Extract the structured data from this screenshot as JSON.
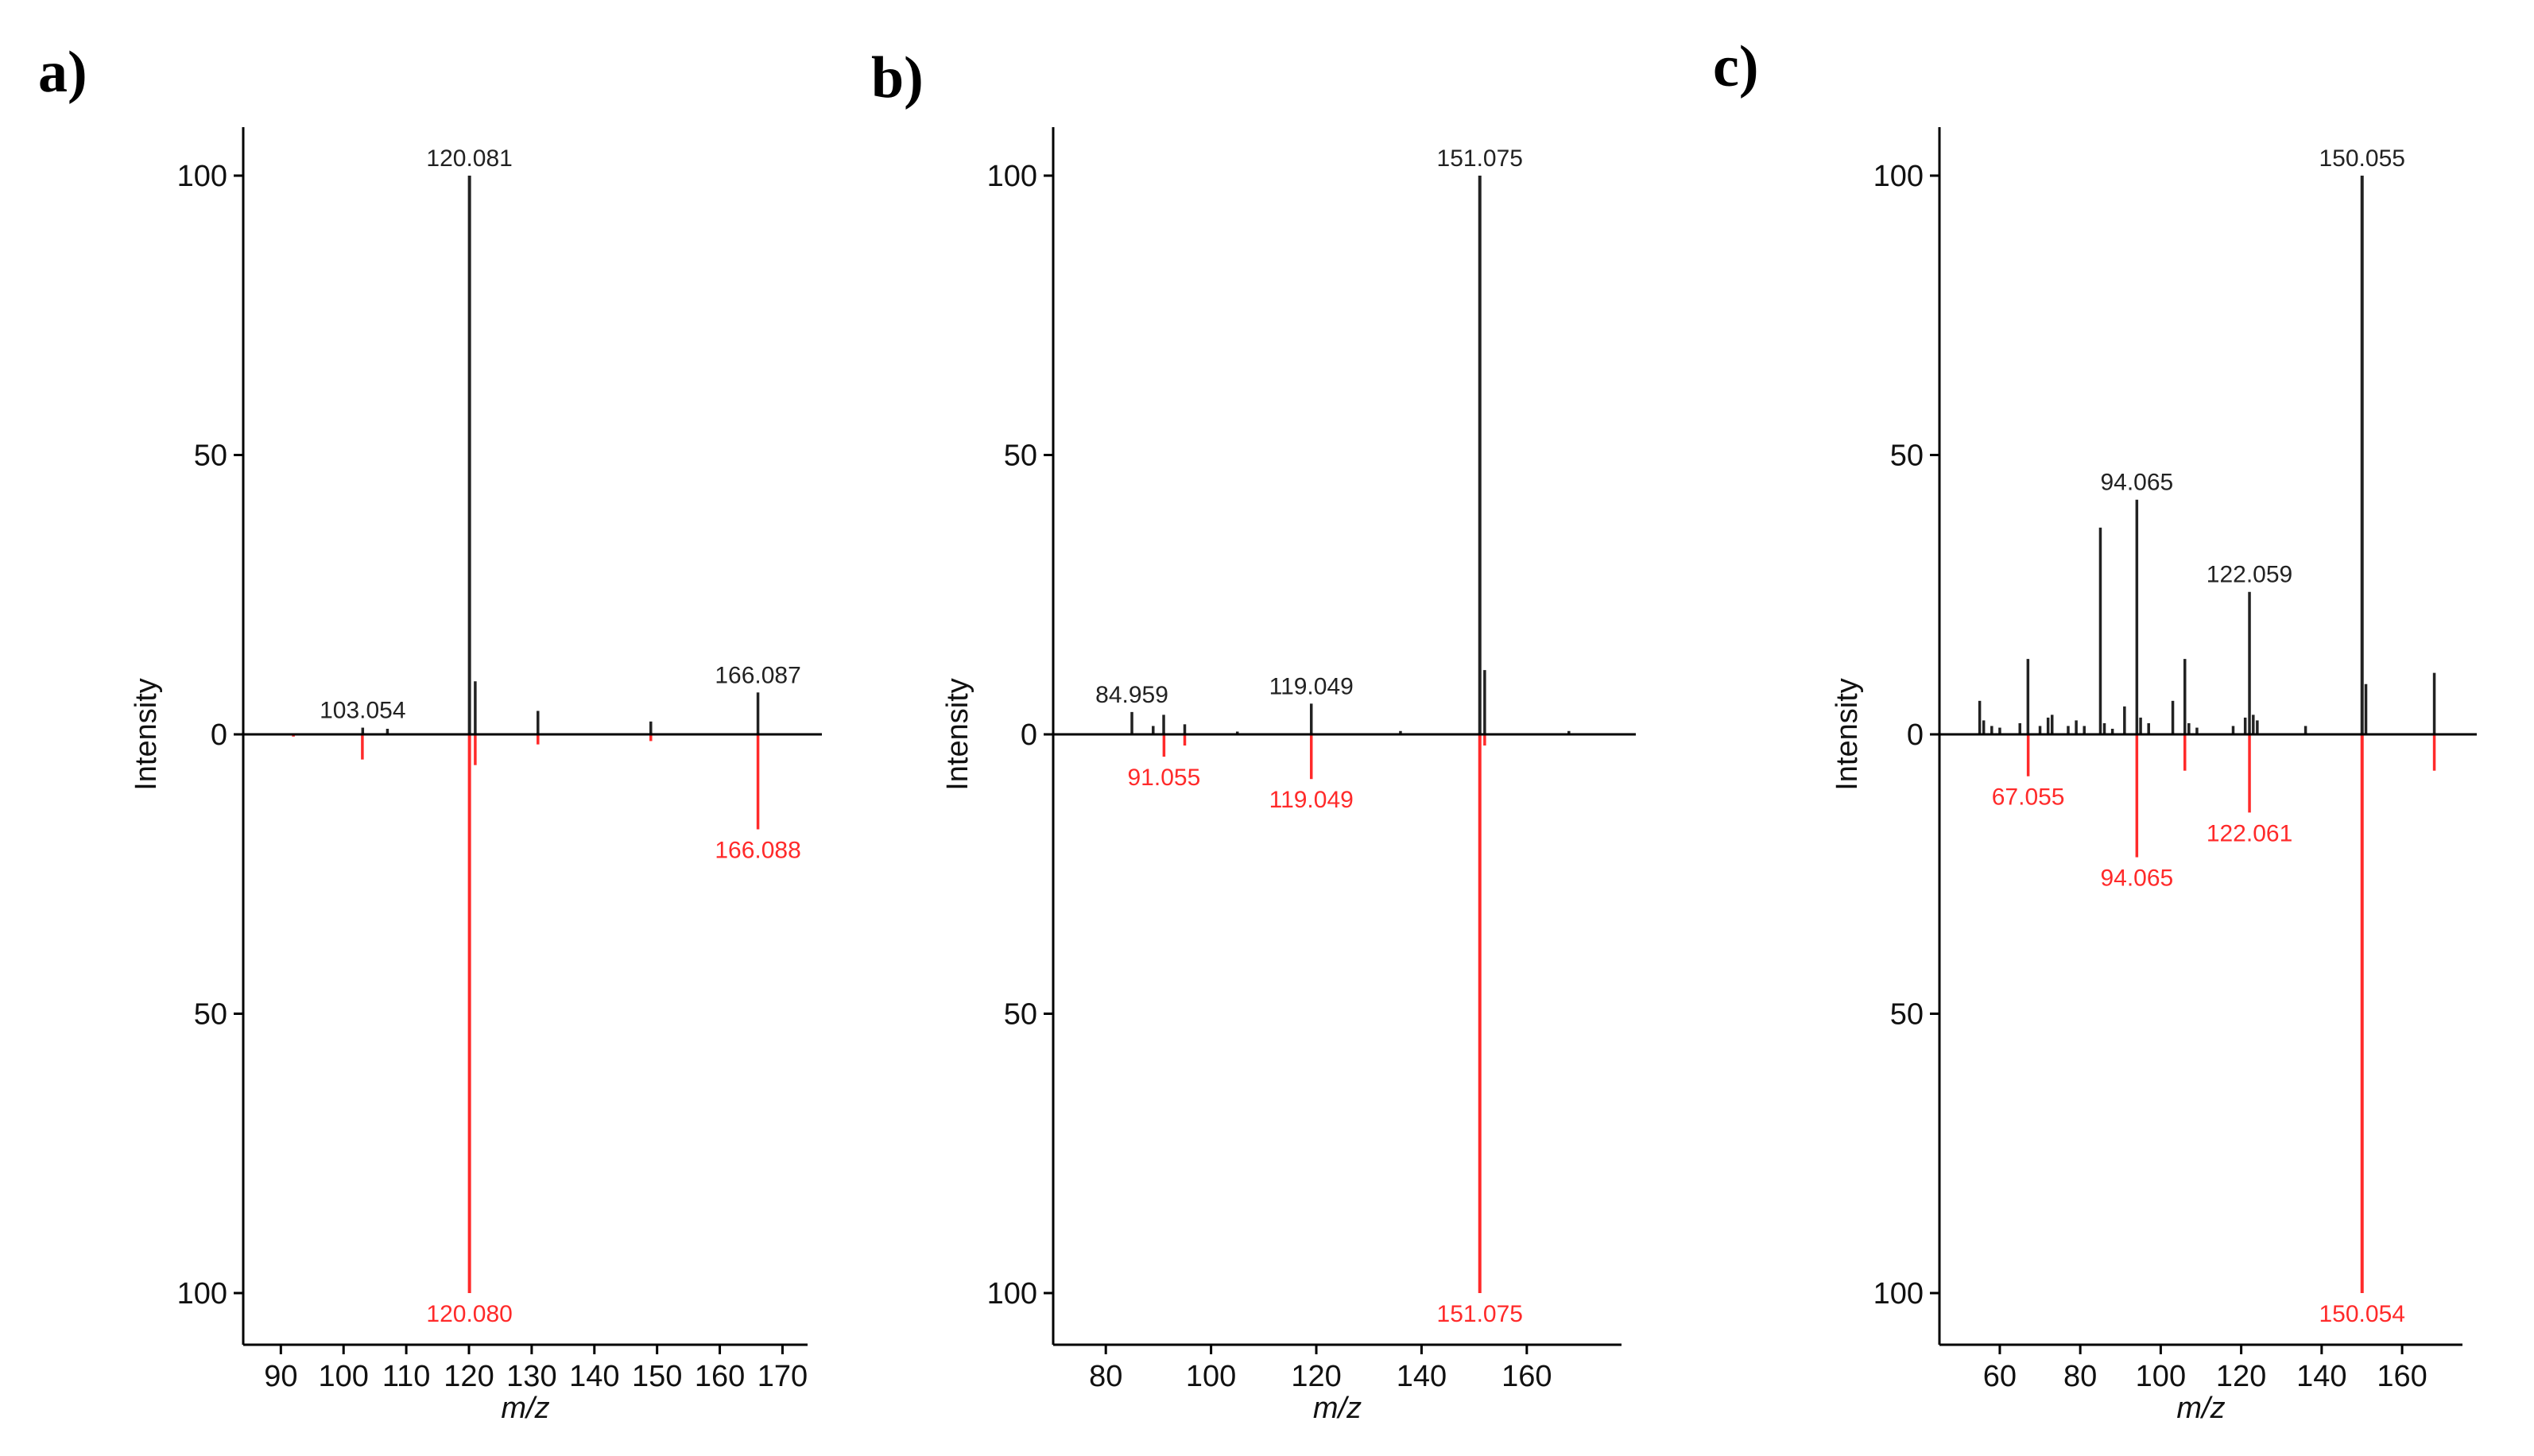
{
  "colors": {
    "library": "#222222",
    "experimental": "#ff2a2a",
    "axis": "#000000"
  },
  "chart_data": [
    {
      "type": "bar",
      "panel_label": "a)",
      "xlabel": "m/z",
      "ylabel": "Intensity",
      "xlim": [
        84,
        174
      ],
      "xticks": [
        90,
        100,
        110,
        120,
        130,
        140,
        150,
        160,
        170
      ],
      "ylim": [
        -105,
        110
      ],
      "yticks": [
        100,
        50,
        0,
        -50,
        -100
      ],
      "ytick_labels": [
        "100",
        "50",
        "0",
        "50",
        "100"
      ],
      "series": [
        {
          "role": "top",
          "peaks": [
            {
              "x": 103.054,
              "y": 1.2,
              "label": "103.054"
            },
            {
              "x": 107.0,
              "y": 1.0
            },
            {
              "x": 120.081,
              "y": 100,
              "label": "120.081"
            },
            {
              "x": 121.0,
              "y": 9.5
            },
            {
              "x": 131.0,
              "y": 4.2
            },
            {
              "x": 149.0,
              "y": 2.3
            },
            {
              "x": 166.087,
              "y": 7.5,
              "label": "166.087"
            }
          ]
        },
        {
          "role": "bottom",
          "peaks": [
            {
              "x": 92.0,
              "y": 0.4
            },
            {
              "x": 103.0,
              "y": 4.5
            },
            {
              "x": 120.08,
              "y": 100,
              "label": "120.080"
            },
            {
              "x": 121.0,
              "y": 5.5
            },
            {
              "x": 131.0,
              "y": 1.8
            },
            {
              "x": 149.0,
              "y": 1.2
            },
            {
              "x": 166.088,
              "y": 17,
              "label": "166.088"
            }
          ]
        }
      ]
    },
    {
      "type": "bar",
      "panel_label": "b)",
      "xlabel": "m/z",
      "ylabel": "Intensity",
      "xlim": [
        70,
        178
      ],
      "xticks": [
        80,
        100,
        120,
        140,
        160
      ],
      "ylim": [
        -105,
        110
      ],
      "yticks": [
        100,
        50,
        0,
        -50,
        -100
      ],
      "ytick_labels": [
        "100",
        "50",
        "0",
        "50",
        "100"
      ],
      "series": [
        {
          "role": "top",
          "peaks": [
            {
              "x": 84.959,
              "y": 4.0,
              "label": "84.959"
            },
            {
              "x": 89.0,
              "y": 1.5
            },
            {
              "x": 91.0,
              "y": 3.5
            },
            {
              "x": 95.0,
              "y": 1.8
            },
            {
              "x": 105.0,
              "y": 0.5
            },
            {
              "x": 119.049,
              "y": 5.5,
              "label": "119.049"
            },
            {
              "x": 136.0,
              "y": 0.6
            },
            {
              "x": 151.075,
              "y": 100,
              "label": "151.075"
            },
            {
              "x": 152.0,
              "y": 11.5
            },
            {
              "x": 168.0,
              "y": 0.6
            }
          ]
        },
        {
          "role": "bottom",
          "peaks": [
            {
              "x": 91.055,
              "y": 4.0,
              "label": "91.055"
            },
            {
              "x": 95.0,
              "y": 2.0
            },
            {
              "x": 119.049,
              "y": 8.0,
              "label": "119.049"
            },
            {
              "x": 151.075,
              "y": 100,
              "label": "151.075"
            },
            {
              "x": 152.0,
              "y": 2.0
            }
          ]
        }
      ]
    },
    {
      "type": "bar",
      "panel_label": "c)",
      "xlabel": "m/z",
      "ylabel": "Intensity",
      "xlim": [
        45,
        175
      ],
      "xticks": [
        60,
        80,
        100,
        120,
        140,
        160
      ],
      "ylim": [
        -105,
        110
      ],
      "yticks": [
        100,
        50,
        0,
        -50,
        -100
      ],
      "ytick_labels": [
        "100",
        "50",
        "0",
        "50",
        "100"
      ],
      "series": [
        {
          "role": "top",
          "peaks": [
            {
              "x": 55.0,
              "y": 6.0
            },
            {
              "x": 56.0,
              "y": 2.5
            },
            {
              "x": 58.0,
              "y": 1.5
            },
            {
              "x": 60.0,
              "y": 1.2
            },
            {
              "x": 65.0,
              "y": 2.0
            },
            {
              "x": 67.0,
              "y": 13.5
            },
            {
              "x": 70.0,
              "y": 1.5
            },
            {
              "x": 72.0,
              "y": 3.0
            },
            {
              "x": 73.0,
              "y": 3.5
            },
            {
              "x": 77.0,
              "y": 1.5
            },
            {
              "x": 79.0,
              "y": 2.5
            },
            {
              "x": 81.0,
              "y": 1.5
            },
            {
              "x": 85.0,
              "y": 37
            },
            {
              "x": 86.0,
              "y": 2.0
            },
            {
              "x": 88.0,
              "y": 1.0
            },
            {
              "x": 91.0,
              "y": 5.0
            },
            {
              "x": 94.065,
              "y": 42,
              "label": "94.065"
            },
            {
              "x": 95.0,
              "y": 3.0
            },
            {
              "x": 97.0,
              "y": 2.0
            },
            {
              "x": 103.0,
              "y": 6.0
            },
            {
              "x": 106.0,
              "y": 13.5
            },
            {
              "x": 107.0,
              "y": 2.0
            },
            {
              "x": 109.0,
              "y": 1.2
            },
            {
              "x": 118.0,
              "y": 1.5
            },
            {
              "x": 121.0,
              "y": 3.0
            },
            {
              "x": 122.059,
              "y": 25.5,
              "label": "122.059"
            },
            {
              "x": 123.0,
              "y": 3.5
            },
            {
              "x": 124.0,
              "y": 2.5
            },
            {
              "x": 136.0,
              "y": 1.5
            },
            {
              "x": 150.055,
              "y": 100,
              "label": "150.055"
            },
            {
              "x": 151.0,
              "y": 9.0
            },
            {
              "x": 168.0,
              "y": 11
            }
          ]
        },
        {
          "role": "bottom",
          "peaks": [
            {
              "x": 67.055,
              "y": 7.5,
              "label": "67.055"
            },
            {
              "x": 94.065,
              "y": 22,
              "label": "94.065"
            },
            {
              "x": 106.0,
              "y": 6.5
            },
            {
              "x": 122.061,
              "y": 14,
              "label": "122.061"
            },
            {
              "x": 150.054,
              "y": 100,
              "label": "150.054"
            },
            {
              "x": 168.0,
              "y": 6.5
            }
          ]
        }
      ]
    }
  ]
}
